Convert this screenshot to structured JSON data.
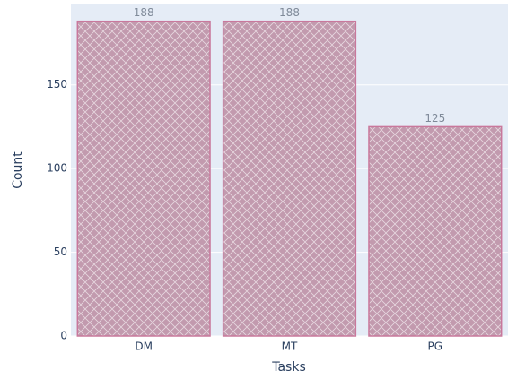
{
  "chart_data": {
    "type": "bar",
    "x_label": "Tasks",
    "y_label": "Count",
    "categories": [
      "DM",
      "MT",
      "PG"
    ],
    "values": [
      188,
      188,
      125
    ],
    "color": "#c29aae",
    "edge_color": "#c9789c",
    "ylim": [
      0,
      198
    ],
    "yticks": [
      0,
      50,
      100,
      150
    ],
    "grid": true
  }
}
